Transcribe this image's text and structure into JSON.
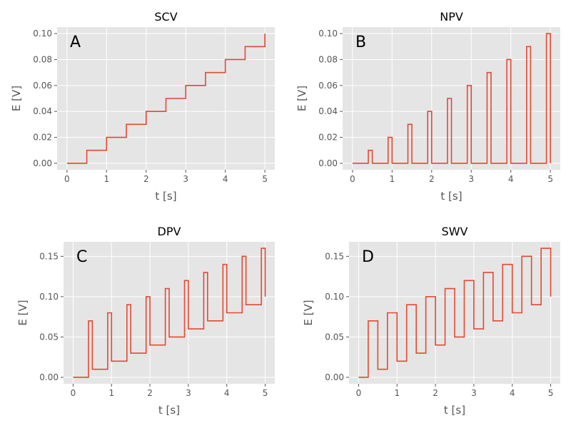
{
  "chart_data": [
    {
      "type": "line",
      "title": "SCV",
      "letter": "A",
      "xlabel": "t [s]",
      "ylabel": "E [V]",
      "xlim": [
        -0.25,
        5.25
      ],
      "ylim": [
        -0.005,
        0.105
      ],
      "xticks": [
        0,
        1,
        2,
        3,
        4,
        5
      ],
      "yticks": [
        0.0,
        0.02,
        0.04,
        0.06,
        0.08,
        0.1
      ],
      "ytick_labels": [
        "0.00",
        "0.02",
        "0.04",
        "0.06",
        "0.08",
        "0.10"
      ],
      "color": "#e24a33",
      "x": [
        0,
        0.5,
        0.5,
        1.0,
        1.0,
        1.5,
        1.5,
        2.0,
        2.0,
        2.5,
        2.5,
        3.0,
        3.0,
        3.5,
        3.5,
        4.0,
        4.0,
        4.5,
        4.5,
        5.0,
        5.0
      ],
      "y": [
        0,
        0,
        0.01,
        0.01,
        0.02,
        0.02,
        0.03,
        0.03,
        0.04,
        0.04,
        0.05,
        0.05,
        0.06,
        0.06,
        0.07,
        0.07,
        0.08,
        0.08,
        0.09,
        0.09,
        0.1
      ]
    },
    {
      "type": "line",
      "title": "NPV",
      "letter": "B",
      "xlabel": "t [s]",
      "ylabel": "E [V]",
      "xlim": [
        -0.25,
        5.25
      ],
      "ylim": [
        -0.005,
        0.105
      ],
      "xticks": [
        0,
        1,
        2,
        3,
        4,
        5
      ],
      "yticks": [
        0.0,
        0.02,
        0.04,
        0.06,
        0.08,
        0.1
      ],
      "ytick_labels": [
        "0.00",
        "0.02",
        "0.04",
        "0.06",
        "0.08",
        "0.10"
      ],
      "color": "#e24a33",
      "x": [
        0,
        0.4,
        0.4,
        0.5,
        0.5,
        0.9,
        0.9,
        1.0,
        1.0,
        1.4,
        1.4,
        1.5,
        1.5,
        1.9,
        1.9,
        2.0,
        2.0,
        2.4,
        2.4,
        2.5,
        2.5,
        2.9,
        2.9,
        3.0,
        3.0,
        3.4,
        3.4,
        3.5,
        3.5,
        3.9,
        3.9,
        4.0,
        4.0,
        4.4,
        4.4,
        4.5,
        4.5,
        4.9,
        4.9,
        5.0,
        5.0
      ],
      "y": [
        0,
        0,
        0.01,
        0.01,
        0,
        0,
        0.02,
        0.02,
        0,
        0,
        0.03,
        0.03,
        0,
        0,
        0.04,
        0.04,
        0,
        0,
        0.05,
        0.05,
        0,
        0,
        0.06,
        0.06,
        0,
        0,
        0.07,
        0.07,
        0,
        0,
        0.08,
        0.08,
        0,
        0,
        0.09,
        0.09,
        0,
        0,
        0.1,
        0.1,
        0
      ]
    },
    {
      "type": "line",
      "title": "DPV",
      "letter": "C",
      "xlabel": "t [s]",
      "ylabel": "E [V]",
      "xlim": [
        -0.25,
        5.25
      ],
      "ylim": [
        -0.008,
        0.168
      ],
      "xticks": [
        0,
        1,
        2,
        3,
        4,
        5
      ],
      "yticks": [
        0.0,
        0.05,
        0.1,
        0.15
      ],
      "ytick_labels": [
        "0.00",
        "0.05",
        "0.10",
        "0.15"
      ],
      "color": "#e24a33",
      "x": [
        0,
        0.4,
        0.4,
        0.5,
        0.5,
        0.9,
        0.9,
        1.0,
        1.0,
        1.4,
        1.4,
        1.5,
        1.5,
        1.9,
        1.9,
        2.0,
        2.0,
        2.4,
        2.4,
        2.5,
        2.5,
        2.9,
        2.9,
        3.0,
        3.0,
        3.4,
        3.4,
        3.5,
        3.5,
        3.9,
        3.9,
        4.0,
        4.0,
        4.4,
        4.4,
        4.5,
        4.5,
        4.9,
        4.9,
        5.0,
        5.0
      ],
      "y": [
        0,
        0,
        0.07,
        0.07,
        0.01,
        0.01,
        0.08,
        0.08,
        0.02,
        0.02,
        0.09,
        0.09,
        0.03,
        0.03,
        0.1,
        0.1,
        0.04,
        0.04,
        0.11,
        0.11,
        0.05,
        0.05,
        0.12,
        0.12,
        0.06,
        0.06,
        0.13,
        0.13,
        0.07,
        0.07,
        0.14,
        0.14,
        0.08,
        0.08,
        0.15,
        0.15,
        0.09,
        0.09,
        0.16,
        0.16,
        0.1
      ]
    },
    {
      "type": "line",
      "title": "SWV",
      "letter": "D",
      "xlabel": "t [s]",
      "ylabel": "E [V]",
      "xlim": [
        -0.25,
        5.25
      ],
      "ylim": [
        -0.008,
        0.168
      ],
      "xticks": [
        0,
        1,
        2,
        3,
        4,
        5
      ],
      "yticks": [
        0.0,
        0.05,
        0.1,
        0.15
      ],
      "ytick_labels": [
        "0.00",
        "0.05",
        "0.10",
        "0.15"
      ],
      "color": "#e24a33",
      "x": [
        0,
        0.25,
        0.25,
        0.5,
        0.5,
        0.75,
        0.75,
        1.0,
        1.0,
        1.25,
        1.25,
        1.5,
        1.5,
        1.75,
        1.75,
        2.0,
        2.0,
        2.25,
        2.25,
        2.5,
        2.5,
        2.75,
        2.75,
        3.0,
        3.0,
        3.25,
        3.25,
        3.5,
        3.5,
        3.75,
        3.75,
        4.0,
        4.0,
        4.25,
        4.25,
        4.5,
        4.5,
        4.75,
        4.75,
        5.0,
        5.0
      ],
      "y": [
        0,
        0,
        0.07,
        0.07,
        0.01,
        0.01,
        0.08,
        0.08,
        0.02,
        0.02,
        0.09,
        0.09,
        0.03,
        0.03,
        0.1,
        0.1,
        0.04,
        0.04,
        0.11,
        0.11,
        0.05,
        0.05,
        0.12,
        0.12,
        0.06,
        0.06,
        0.13,
        0.13,
        0.07,
        0.07,
        0.14,
        0.14,
        0.08,
        0.08,
        0.15,
        0.15,
        0.09,
        0.09,
        0.16,
        0.16,
        0.1
      ]
    }
  ]
}
